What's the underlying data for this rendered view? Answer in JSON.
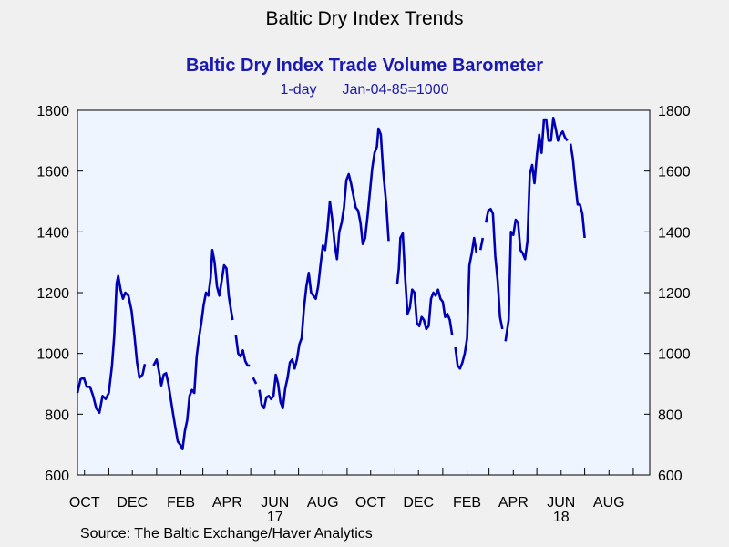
{
  "header": {
    "title": "Baltic Dry Index Trends",
    "subtitle": "Baltic Dry Index Trade Volume Barometer",
    "frequency": "1-day",
    "base": "Jan-04-85=1000"
  },
  "footer": {
    "source": "Source:  The Baltic Exchange/Haver Analytics"
  },
  "chart_data": {
    "type": "line",
    "title": "Baltic Dry Index Trade Volume Barometer",
    "ylim": [
      600,
      1800
    ],
    "y_ticks": [
      600,
      800,
      1000,
      1200,
      1400,
      1600,
      1800
    ],
    "x_range": [
      "2016-09-22",
      "2018-09-22"
    ],
    "x_tick_labels": [
      {
        "label": "OCT",
        "date": "2016-10-01"
      },
      {
        "label": "DEC",
        "date": "2016-12-01"
      },
      {
        "label": "FEB",
        "date": "2017-02-01"
      },
      {
        "label": "APR",
        "date": "2017-04-01"
      },
      {
        "label": "JUN",
        "date": "2017-06-01",
        "year": "17"
      },
      {
        "label": "AUG",
        "date": "2017-08-01"
      },
      {
        "label": "OCT",
        "date": "2017-10-01"
      },
      {
        "label": "DEC",
        "date": "2017-12-01"
      },
      {
        "label": "FEB",
        "date": "2018-02-01"
      },
      {
        "label": "APR",
        "date": "2018-04-01"
      },
      {
        "label": "JUN",
        "date": "2018-06-01",
        "year": "18"
      },
      {
        "label": "AUG",
        "date": "2018-08-01"
      }
    ],
    "color": "#0000b4",
    "grid": false,
    "legend": "none",
    "points": [
      [
        "2016-09-22",
        870
      ],
      [
        "2016-09-26",
        915
      ],
      [
        "2016-09-30",
        920
      ],
      [
        "2016-10-04",
        890
      ],
      [
        "2016-10-08",
        890
      ],
      [
        "2016-10-12",
        860
      ],
      [
        "2016-10-16",
        820
      ],
      [
        "2016-10-20",
        805
      ],
      [
        "2016-10-24",
        860
      ],
      [
        "2016-10-28",
        850
      ],
      [
        "2016-11-01",
        870
      ],
      [
        "2016-11-05",
        960
      ],
      [
        "2016-11-08",
        1060
      ],
      [
        "2016-11-11",
        1230
      ],
      [
        "2016-11-13",
        1255
      ],
      [
        "2016-11-16",
        1210
      ],
      [
        "2016-11-19",
        1180
      ],
      [
        "2016-11-22",
        1200
      ],
      [
        "2016-11-26",
        1190
      ],
      [
        "2016-11-30",
        1140
      ],
      [
        "2016-12-04",
        1050
      ],
      [
        "2016-12-07",
        970
      ],
      [
        "2016-12-10",
        920
      ],
      [
        "2016-12-14",
        930
      ],
      [
        "2016-12-17",
        965
      ],
      null,
      [
        "2016-12-28",
        960
      ],
      [
        "2017-01-01",
        980
      ],
      [
        "2017-01-04",
        940
      ],
      [
        "2017-01-07",
        895
      ],
      [
        "2017-01-10",
        930
      ],
      [
        "2017-01-13",
        935
      ],
      [
        "2017-01-16",
        900
      ],
      [
        "2017-01-19",
        850
      ],
      [
        "2017-01-22",
        800
      ],
      [
        "2017-01-25",
        755
      ],
      [
        "2017-01-28",
        710
      ],
      [
        "2017-01-31",
        700
      ],
      [
        "2017-02-03",
        685
      ],
      [
        "2017-02-06",
        745
      ],
      [
        "2017-02-09",
        780
      ],
      [
        "2017-02-12",
        860
      ],
      [
        "2017-02-15",
        880
      ],
      [
        "2017-02-18",
        870
      ],
      [
        "2017-02-21",
        990
      ],
      [
        "2017-02-24",
        1050
      ],
      [
        "2017-02-27",
        1100
      ],
      [
        "2017-03-02",
        1160
      ],
      [
        "2017-03-05",
        1200
      ],
      [
        "2017-03-08",
        1190
      ],
      [
        "2017-03-11",
        1250
      ],
      [
        "2017-03-13",
        1340
      ],
      [
        "2017-03-16",
        1300
      ],
      [
        "2017-03-19",
        1220
      ],
      [
        "2017-03-22",
        1190
      ],
      [
        "2017-03-25",
        1240
      ],
      [
        "2017-03-28",
        1290
      ],
      [
        "2017-03-31",
        1280
      ],
      [
        "2017-04-03",
        1190
      ],
      [
        "2017-04-06",
        1140
      ],
      [
        "2017-04-08",
        1110
      ],
      null,
      [
        "2017-04-12",
        1060
      ],
      [
        "2017-04-15",
        1000
      ],
      [
        "2017-04-18",
        990
      ],
      [
        "2017-04-21",
        1010
      ],
      [
        "2017-04-24",
        975
      ],
      [
        "2017-04-27",
        960
      ],
      [
        "2017-04-30",
        960
      ],
      null,
      [
        "2017-05-04",
        920
      ],
      [
        "2017-05-08",
        900
      ],
      null,
      [
        "2017-05-12",
        880
      ],
      [
        "2017-05-15",
        830
      ],
      [
        "2017-05-18",
        820
      ],
      [
        "2017-05-21",
        855
      ],
      [
        "2017-05-24",
        860
      ],
      [
        "2017-05-27",
        850
      ],
      [
        "2017-05-30",
        860
      ],
      [
        "2017-06-02",
        930
      ],
      [
        "2017-06-05",
        900
      ],
      [
        "2017-06-08",
        840
      ],
      [
        "2017-06-11",
        820
      ],
      [
        "2017-06-14",
        885
      ],
      [
        "2017-06-17",
        920
      ],
      [
        "2017-06-20",
        970
      ],
      [
        "2017-06-23",
        980
      ],
      [
        "2017-06-26",
        950
      ],
      [
        "2017-06-29",
        980
      ],
      [
        "2017-07-02",
        1030
      ],
      [
        "2017-07-05",
        1050
      ],
      [
        "2017-07-08",
        1150
      ],
      [
        "2017-07-11",
        1220
      ],
      [
        "2017-07-14",
        1265
      ],
      [
        "2017-07-17",
        1200
      ],
      [
        "2017-07-20",
        1190
      ],
      [
        "2017-07-23",
        1180
      ],
      [
        "2017-07-26",
        1220
      ],
      [
        "2017-07-29",
        1290
      ],
      [
        "2017-08-01",
        1355
      ],
      [
        "2017-08-04",
        1340
      ],
      [
        "2017-08-07",
        1410
      ],
      [
        "2017-08-10",
        1500
      ],
      [
        "2017-08-13",
        1440
      ],
      [
        "2017-08-16",
        1360
      ],
      [
        "2017-08-19",
        1310
      ],
      [
        "2017-08-22",
        1400
      ],
      [
        "2017-08-25",
        1430
      ],
      [
        "2017-08-28",
        1480
      ],
      [
        "2017-08-31",
        1570
      ],
      [
        "2017-09-03",
        1590
      ],
      [
        "2017-09-06",
        1560
      ],
      [
        "2017-09-09",
        1520
      ],
      [
        "2017-09-12",
        1480
      ],
      [
        "2017-09-15",
        1470
      ],
      [
        "2017-09-18",
        1430
      ],
      [
        "2017-09-21",
        1360
      ],
      [
        "2017-09-24",
        1380
      ],
      [
        "2017-09-27",
        1450
      ],
      [
        "2017-09-30",
        1530
      ],
      [
        "2017-10-03",
        1610
      ],
      [
        "2017-10-06",
        1660
      ],
      [
        "2017-10-09",
        1680
      ],
      [
        "2017-10-11",
        1740
      ],
      [
        "2017-10-14",
        1720
      ],
      [
        "2017-10-17",
        1600
      ],
      [
        "2017-10-21",
        1490
      ],
      [
        "2017-10-24",
        1370
      ],
      null,
      [
        "2017-11-04",
        1230
      ],
      [
        "2017-11-06",
        1280
      ],
      [
        "2017-11-08",
        1380
      ],
      [
        "2017-11-11",
        1395
      ],
      [
        "2017-11-14",
        1250
      ],
      [
        "2017-11-17",
        1130
      ],
      [
        "2017-11-20",
        1150
      ],
      [
        "2017-11-23",
        1210
      ],
      [
        "2017-11-26",
        1200
      ],
      [
        "2017-11-29",
        1100
      ],
      [
        "2017-12-02",
        1090
      ],
      [
        "2017-12-05",
        1120
      ],
      [
        "2017-12-08",
        1110
      ],
      [
        "2017-12-11",
        1080
      ],
      [
        "2017-12-14",
        1090
      ],
      [
        "2017-12-17",
        1180
      ],
      [
        "2017-12-20",
        1200
      ],
      [
        "2017-12-23",
        1190
      ],
      [
        "2017-12-26",
        1210
      ],
      [
        "2017-12-29",
        1180
      ],
      [
        "2018-01-01",
        1170
      ],
      [
        "2018-01-04",
        1120
      ],
      [
        "2018-01-07",
        1130
      ],
      [
        "2018-01-10",
        1110
      ],
      [
        "2018-01-13",
        1060
      ],
      null,
      [
        "2018-01-17",
        1020
      ],
      [
        "2018-01-20",
        960
      ],
      [
        "2018-01-23",
        950
      ],
      [
        "2018-01-26",
        970
      ],
      [
        "2018-01-29",
        1000
      ],
      [
        "2018-02-01",
        1050
      ],
      [
        "2018-02-04",
        1290
      ],
      [
        "2018-02-07",
        1330
      ],
      [
        "2018-02-10",
        1380
      ],
      [
        "2018-02-13",
        1330
      ],
      null,
      [
        "2018-02-18",
        1340
      ],
      [
        "2018-02-21",
        1380
      ],
      null,
      [
        "2018-02-25",
        1430
      ],
      [
        "2018-02-28",
        1470
      ],
      [
        "2018-03-03",
        1475
      ],
      [
        "2018-03-06",
        1460
      ],
      [
        "2018-03-09",
        1320
      ],
      [
        "2018-03-12",
        1240
      ],
      [
        "2018-03-15",
        1120
      ],
      [
        "2018-03-18",
        1080
      ],
      null,
      [
        "2018-03-22",
        1040
      ],
      [
        "2018-03-26",
        1110
      ],
      [
        "2018-03-29",
        1400
      ],
      [
        "2018-04-01",
        1390
      ],
      [
        "2018-04-04",
        1440
      ],
      [
        "2018-04-07",
        1430
      ],
      [
        "2018-04-10",
        1340
      ],
      [
        "2018-04-13",
        1330
      ],
      [
        "2018-04-16",
        1310
      ],
      [
        "2018-04-19",
        1370
      ],
      [
        "2018-04-22",
        1590
      ],
      [
        "2018-04-25",
        1620
      ],
      [
        "2018-04-28",
        1560
      ],
      [
        "2018-05-01",
        1650
      ],
      [
        "2018-05-04",
        1720
      ],
      [
        "2018-05-07",
        1660
      ],
      [
        "2018-05-10",
        1770
      ],
      [
        "2018-05-13",
        1770
      ],
      [
        "2018-05-16",
        1700
      ],
      [
        "2018-05-19",
        1700
      ],
      [
        "2018-05-22",
        1775
      ],
      [
        "2018-05-25",
        1740
      ],
      [
        "2018-05-28",
        1700
      ],
      [
        "2018-05-31",
        1720
      ],
      [
        "2018-06-03",
        1730
      ],
      [
        "2018-06-06",
        1710
      ],
      [
        "2018-06-09",
        1700
      ],
      null,
      [
        "2018-06-13",
        1690
      ],
      [
        "2018-06-16",
        1640
      ],
      [
        "2018-06-19",
        1560
      ],
      [
        "2018-06-22",
        1490
      ],
      [
        "2018-06-25",
        1490
      ],
      [
        "2018-06-28",
        1460
      ],
      [
        "2018-07-01",
        1380
      ]
    ]
  }
}
